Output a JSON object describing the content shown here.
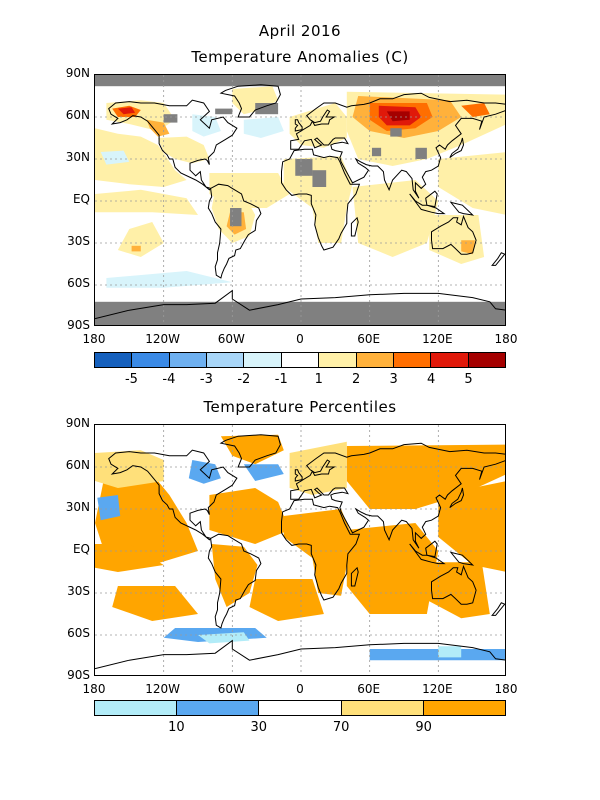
{
  "top_map": {
    "title_line1": "April 2016",
    "title_line2": "Temperature Anomalies (C)",
    "lat_labels": [
      "90N",
      "60N",
      "30N",
      "EQ",
      "30S",
      "60S",
      "90S"
    ],
    "lon_labels": [
      "180",
      "120W",
      "60W",
      "0",
      "60E",
      "120E",
      "180"
    ],
    "colorbar": {
      "colors": [
        "#1560bd",
        "#3a8ae6",
        "#6eb0f0",
        "#a8d6f8",
        "#d8f4fb",
        "#ffffff",
        "#fff0a8",
        "#ffb13b",
        "#ff6e00",
        "#e0190a",
        "#a50000"
      ],
      "labels": [
        "-5",
        "-4",
        "-3",
        "-2",
        "-1",
        "1",
        "2",
        "3",
        "4",
        "5"
      ]
    }
  },
  "bottom_map": {
    "title": "Temperature Percentiles",
    "lat_labels": [
      "90N",
      "60N",
      "30N",
      "EQ",
      "30S",
      "60S",
      "90S"
    ],
    "lon_labels": [
      "180",
      "120W",
      "60W",
      "0",
      "60E",
      "120E",
      "180"
    ],
    "colorbar": {
      "colors": [
        "#b2ecf8",
        "#5aa8f0",
        "#ffffff",
        "#ffe07a",
        "#ffa500"
      ],
      "labels": [
        "10",
        "30",
        "70",
        "90"
      ]
    }
  },
  "colors": {
    "missing": "#808080",
    "coast": "#000000",
    "grid": "#9a9a9a"
  }
}
